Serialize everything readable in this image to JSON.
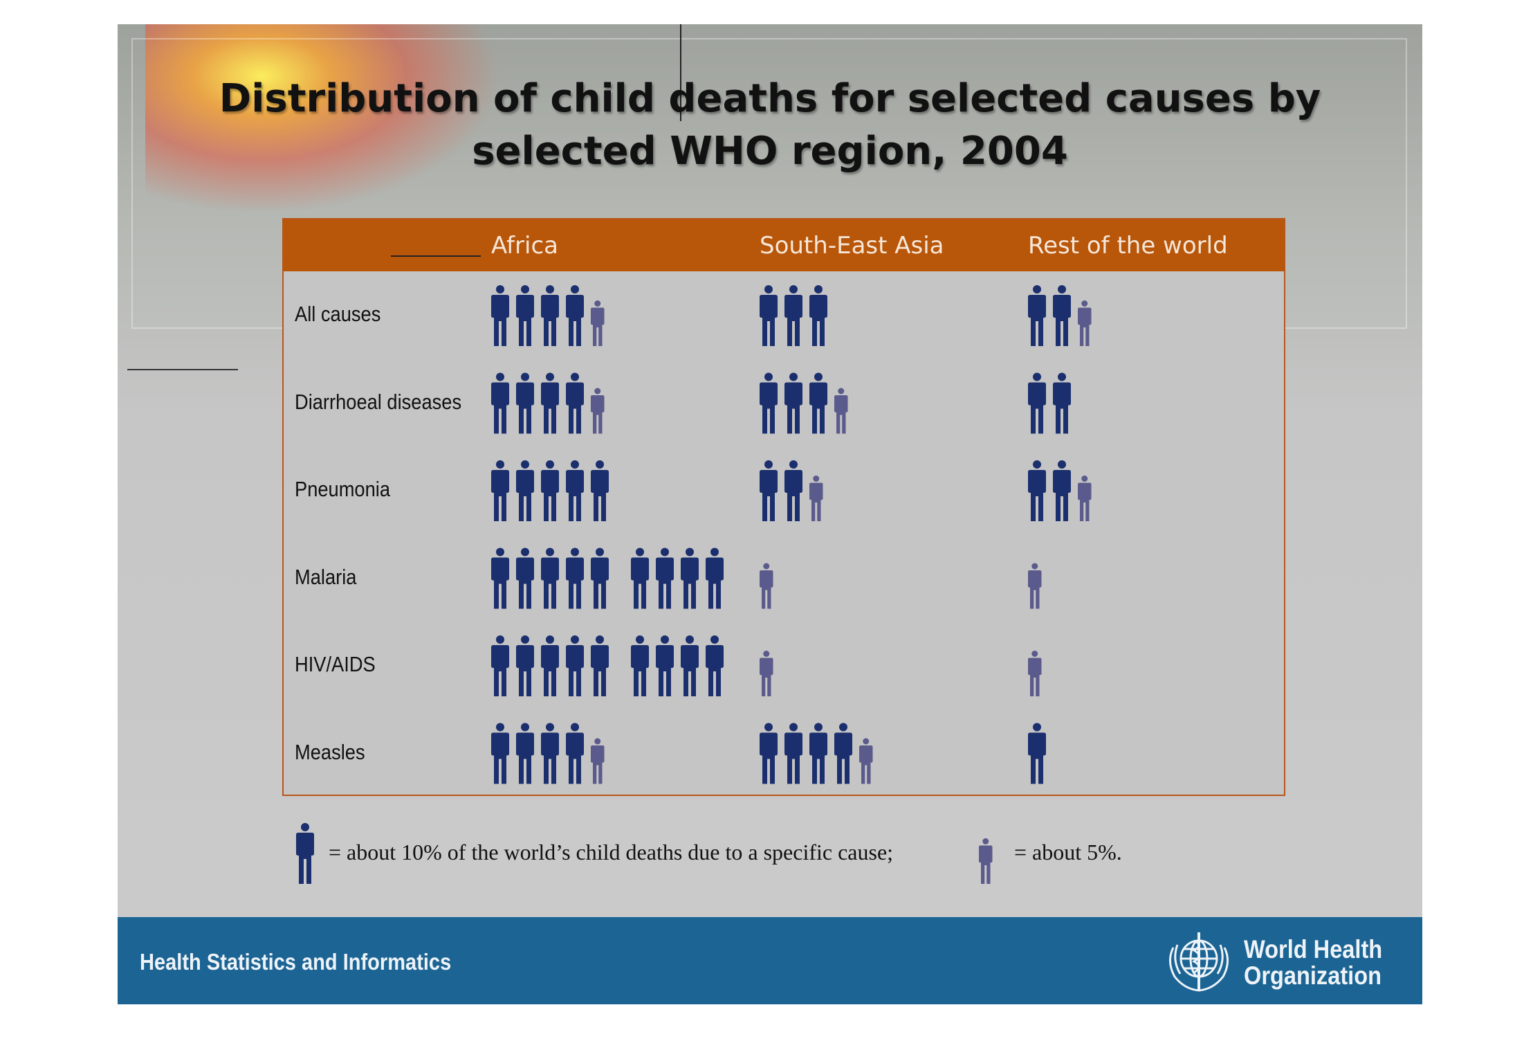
{
  "title": {
    "line1": "Distribution of child deaths for selected causes by",
    "line2": "selected WHO region, 2004"
  },
  "chart_data": {
    "type": "pictogram",
    "unit_full": "about 10% of the world's child deaths due to a specific cause",
    "unit_half": "about 5%",
    "columns": [
      "Africa",
      "South-East Asia",
      "Rest of the world"
    ],
    "rows": [
      {
        "label": "All causes",
        "values": [
          45,
          30,
          25
        ]
      },
      {
        "label": "Diarrhoeal diseases",
        "values": [
          45,
          35,
          20
        ]
      },
      {
        "label": "Pneumonia",
        "values": [
          50,
          25,
          25
        ]
      },
      {
        "label": "Malaria",
        "values": [
          90,
          5,
          5
        ]
      },
      {
        "label": "HIV/AIDS",
        "values": [
          90,
          5,
          5
        ]
      },
      {
        "label": "Measles",
        "values": [
          45,
          45,
          10
        ]
      }
    ],
    "colors": {
      "full_icon": "#1b2f6e",
      "half_icon": "#5b5a8c",
      "header": "#b8560a"
    }
  },
  "legend": {
    "full_text": "= about 10% of the world’s child deaths due to a specific cause;",
    "half_text": "= about 5%."
  },
  "footer": {
    "left": "Health Statistics and Informatics",
    "org_line1": "World Health",
    "org_line2": "Organization",
    "emblem": "who-emblem-icon"
  }
}
